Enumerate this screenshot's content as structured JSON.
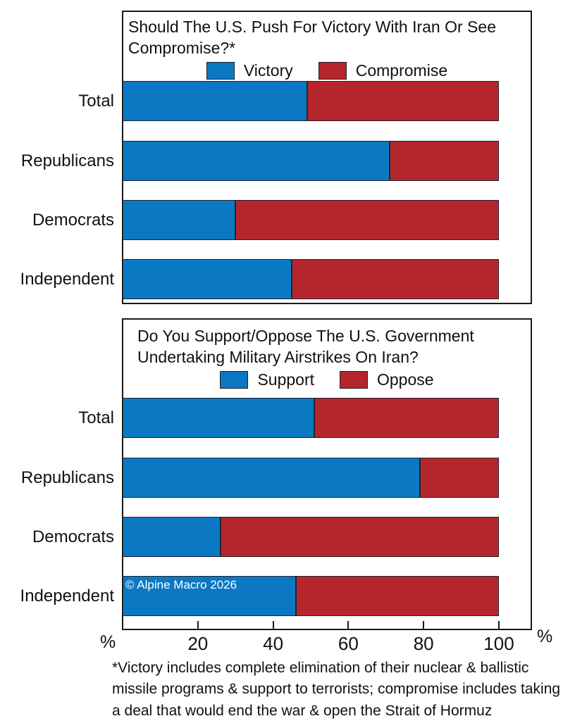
{
  "colors": {
    "blue": "#0b78c3",
    "red": "#b5262c",
    "axis": "#1a1a1a"
  },
  "watermark": "© Alpine Macro 2026",
  "axis": {
    "ticks": [
      20,
      40,
      60,
      80,
      100
    ],
    "left_unit": "%",
    "right_unit": "%"
  },
  "footnote": "*Victory includes complete elimination of their nuclear & ballistic missile programs & support to terrorists; compromise includes taking a deal that would end the war & open the Strait of Hormuz",
  "chart_data": [
    {
      "type": "bar",
      "orientation": "horizontal",
      "stacked": true,
      "title": "Should The U.S. Push For Victory With Iran Or See Compromise?*",
      "categories": [
        "Total",
        "Republicans",
        "Democrats",
        "Independent"
      ],
      "series": [
        {
          "name": "Victory",
          "color": "#0b78c3",
          "values": [
            49,
            71,
            30,
            45
          ]
        },
        {
          "name": "Compromise",
          "color": "#b5262c",
          "values": [
            51,
            29,
            70,
            55
          ]
        }
      ],
      "xlim": [
        0,
        100
      ],
      "unit": "%",
      "legend_position": "top",
      "grid": false
    },
    {
      "type": "bar",
      "orientation": "horizontal",
      "stacked": true,
      "title": "Do You Support/Oppose The U.S. Government Undertaking Military Airstrikes On Iran?",
      "categories": [
        "Total",
        "Republicans",
        "Democrats",
        "Independent"
      ],
      "series": [
        {
          "name": "Support",
          "color": "#0b78c3",
          "values": [
            51,
            79,
            26,
            46
          ]
        },
        {
          "name": "Oppose",
          "color": "#b5262c",
          "values": [
            49,
            21,
            74,
            54
          ]
        }
      ],
      "xlim": [
        0,
        100
      ],
      "unit": "%",
      "legend_position": "top",
      "grid": false
    }
  ]
}
